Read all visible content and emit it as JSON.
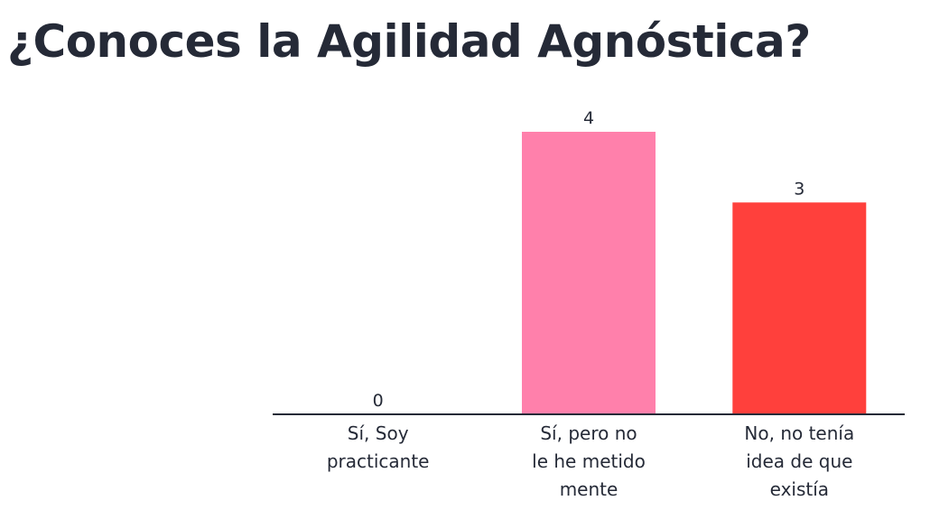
{
  "title": "¿Conoces la Agilidad Agnóstica?",
  "chart_data": {
    "type": "bar",
    "title": "",
    "xlabel": "",
    "ylabel": "",
    "ylim": [
      0,
      4
    ],
    "grid": false,
    "legend": "none",
    "categories": [
      [
        "Sí, Soy",
        "practicante"
      ],
      [
        "Sí, pero no",
        "le he metido",
        "mente"
      ],
      [
        "No, no tenía",
        "idea de que",
        "existía"
      ]
    ],
    "values": [
      0,
      4,
      3
    ],
    "colors": [
      "#5b6ee1",
      "#ff80ab",
      "#ff403c"
    ],
    "axis_color": "#252a37"
  }
}
